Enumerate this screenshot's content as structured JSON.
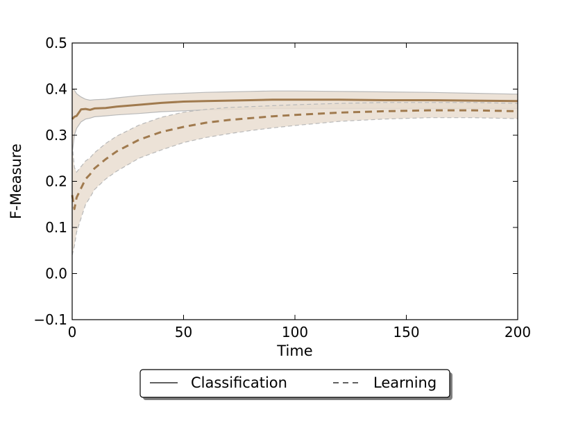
{
  "chart_data": {
    "type": "line",
    "title": "",
    "xlabel": "Time",
    "ylabel": "F-Measure",
    "xlim": [
      0,
      200
    ],
    "ylim": [
      -0.1,
      0.5
    ],
    "xticks": [
      "0",
      "50",
      "100",
      "150",
      "200"
    ],
    "yticks": [
      "−0.1",
      "0.0",
      "0.1",
      "0.2",
      "0.3",
      "0.4",
      "0.5"
    ],
    "grid": false,
    "legend_position": "bottom-center",
    "line_color": "#a07a4e",
    "band_color": "#e9ddd0",
    "band_edge_color": "#b8b8b8",
    "series": [
      {
        "name": "Classification",
        "style": "solid",
        "x": [
          0,
          1,
          2,
          4,
          6,
          8,
          10,
          15,
          20,
          30,
          40,
          50,
          60,
          70,
          80,
          90,
          100,
          120,
          140,
          160,
          180,
          200
        ],
        "y": [
          0.335,
          0.34,
          0.342,
          0.356,
          0.357,
          0.355,
          0.358,
          0.359,
          0.362,
          0.366,
          0.37,
          0.373,
          0.374,
          0.375,
          0.376,
          0.377,
          0.377,
          0.377,
          0.376,
          0.376,
          0.375,
          0.374
        ],
        "upper": [
          0.4,
          0.398,
          0.39,
          0.383,
          0.378,
          0.376,
          0.377,
          0.378,
          0.381,
          0.386,
          0.389,
          0.391,
          0.393,
          0.394,
          0.395,
          0.396,
          0.396,
          0.395,
          0.394,
          0.393,
          0.391,
          0.389
        ],
        "lower": [
          0.26,
          0.3,
          0.315,
          0.329,
          0.335,
          0.337,
          0.34,
          0.342,
          0.344,
          0.347,
          0.351,
          0.353,
          0.355,
          0.356,
          0.357,
          0.358,
          0.358,
          0.358,
          0.358,
          0.358,
          0.358,
          0.358
        ]
      },
      {
        "name": "Learning",
        "style": "dashed",
        "x": [
          0,
          1,
          2,
          4,
          6,
          8,
          10,
          15,
          20,
          30,
          40,
          50,
          60,
          70,
          80,
          90,
          100,
          120,
          140,
          160,
          180,
          200
        ],
        "y": [
          0.17,
          0.14,
          0.165,
          0.185,
          0.205,
          0.215,
          0.228,
          0.248,
          0.265,
          0.29,
          0.307,
          0.318,
          0.327,
          0.333,
          0.337,
          0.341,
          0.344,
          0.349,
          0.352,
          0.354,
          0.354,
          0.352
        ],
        "upper": [
          0.28,
          0.23,
          0.22,
          0.232,
          0.244,
          0.251,
          0.262,
          0.282,
          0.298,
          0.322,
          0.339,
          0.35,
          0.356,
          0.36,
          0.362,
          0.364,
          0.366,
          0.369,
          0.371,
          0.371,
          0.371,
          0.369
        ],
        "lower": [
          0.04,
          0.06,
          0.09,
          0.12,
          0.15,
          0.165,
          0.182,
          0.205,
          0.222,
          0.25,
          0.268,
          0.284,
          0.295,
          0.303,
          0.31,
          0.316,
          0.321,
          0.33,
          0.335,
          0.338,
          0.338,
          0.336
        ]
      }
    ]
  }
}
